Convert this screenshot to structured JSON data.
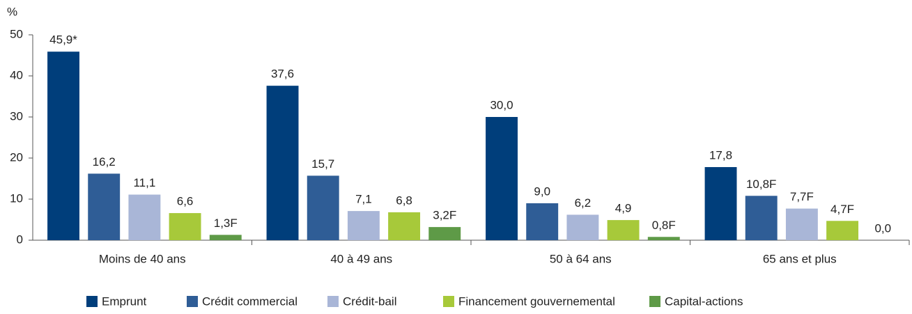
{
  "chart_data": {
    "type": "bar",
    "y_label": "%",
    "categories": [
      "Moins de 40 ans",
      "40 à 49 ans",
      "50 à 64 ans",
      "65 ans et plus"
    ],
    "series": [
      {
        "name": "Emprunt",
        "color": "#003e7b",
        "values": [
          45.9,
          37.6,
          30.0,
          17.8
        ],
        "value_labels": [
          "45,9*",
          "37,6",
          "30,0",
          "17,8"
        ]
      },
      {
        "name": "Crédit commercial",
        "color": "#2f5d96",
        "values": [
          16.2,
          15.7,
          9.0,
          10.8
        ],
        "value_labels": [
          "16,2",
          "15,7",
          "9,0",
          "10,8F"
        ]
      },
      {
        "name": "Crédit-bail",
        "color": "#a9b6d7",
        "values": [
          11.1,
          7.1,
          6.2,
          7.7
        ],
        "value_labels": [
          "11,1",
          "7,1",
          "6,2",
          "7,7F"
        ]
      },
      {
        "name": "Financement gouvernemental",
        "color": "#a7c93a",
        "values": [
          6.6,
          6.8,
          4.9,
          4.7
        ],
        "value_labels": [
          "6,6",
          "6,8",
          "4,9",
          "4,7F"
        ]
      },
      {
        "name": "Capital-actions",
        "color": "#5e9a47",
        "values": [
          1.3,
          3.2,
          0.8,
          0.0
        ],
        "value_labels": [
          "1,3F",
          "3,2F",
          "0,8F",
          "0,0"
        ]
      }
    ],
    "ylim": [
      0,
      50
    ],
    "yticks": [
      0,
      10,
      20,
      30,
      40,
      50
    ],
    "grid": false,
    "legend": "bottom"
  }
}
